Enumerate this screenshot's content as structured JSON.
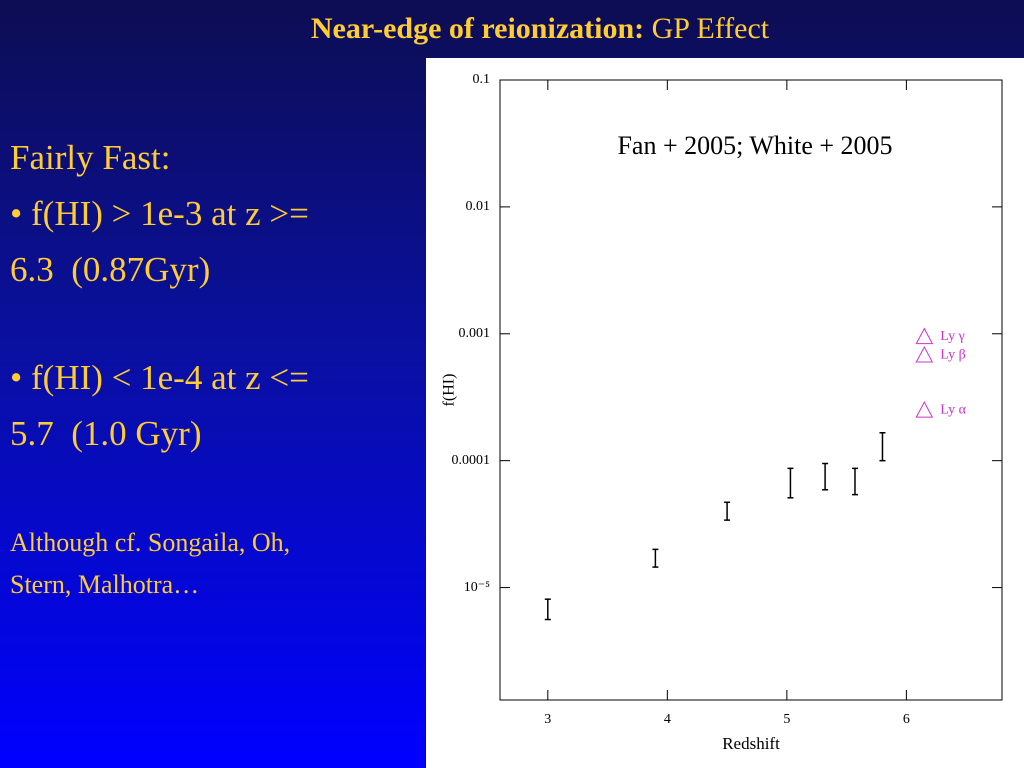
{
  "title": {
    "bold": "Near-edge of reionization:",
    "normal": "GP Effect"
  },
  "body": [
    [
      "Fairly Fast:",
      "• f(HI) > 1e-3 at z >=",
      "6.3  (0.87Gyr)"
    ],
    [
      "• f(HI) < 1e-4 at z <=",
      "5.7  (1.0 Gyr)"
    ]
  ],
  "note": [
    "Although cf. Songaila, Oh,",
    "Stern, Malhotra…"
  ],
  "chart_data": {
    "type": "errorbar",
    "x_label": "Redshift",
    "y_label": "f(HI)",
    "annotation": "Fan + 2005; White + 2005",
    "log_y": true,
    "xlim": [
      2.6,
      6.8
    ],
    "ylim": [
      1.3e-06,
      0.1
    ],
    "xticks": [
      3,
      4,
      5,
      6
    ],
    "yticks": [
      0.1,
      0.01,
      0.001,
      0.0001,
      {
        "value": 1e-05,
        "label": "10⁻⁵"
      }
    ],
    "series": [
      {
        "color": "#000000",
        "x": [
          3.0,
          3.9,
          4.5,
          5.03,
          5.32,
          5.57,
          5.8
        ],
        "values": [
          6.7e-06,
          1.7e-05,
          4e-05,
          6.7e-05,
          7.4e-05,
          6.8e-05,
          0.00013
        ],
        "lower": [
          5.6e-06,
          1.45e-05,
          3.4e-05,
          5.1e-05,
          5.9e-05,
          5.4e-05,
          0.0001
        ],
        "upper": [
          8.1e-06,
          2e-05,
          4.7e-05,
          8.7e-05,
          9.5e-05,
          8.7e-05,
          0.000166
        ]
      }
    ],
    "limits": {
      "color": "#cc33cc",
      "x": [
        6.15,
        6.15,
        6.15
      ],
      "values": [
        0.00095,
        0.00068,
        0.00025
      ],
      "labels": [
        "Ly γ",
        "Ly β",
        "Ly α"
      ]
    }
  }
}
